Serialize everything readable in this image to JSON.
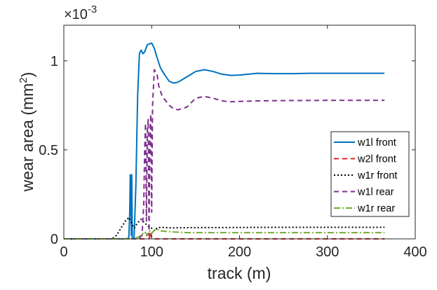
{
  "chart_data": {
    "type": "line",
    "xlabel": "track (m)",
    "ylabel": "wear area (mm",
    "ylabel_sup": "2",
    "ylabel_close": ")",
    "exponent_base": "×10",
    "exponent_power": "-3",
    "xlim": [
      0,
      400
    ],
    "ylim": [
      0,
      1.2
    ],
    "x_ticks": [
      0,
      100,
      200,
      300,
      400
    ],
    "x_tick_labels": [
      "0",
      "100",
      "200",
      "300",
      "400"
    ],
    "y_ticks": [
      0,
      0.5,
      1
    ],
    "y_tick_labels": [
      "0",
      "0.5",
      "1"
    ],
    "grid": false,
    "legend_position": "right",
    "series": [
      {
        "name": "w1l front",
        "color": "#0072BD",
        "dash": "solid",
        "points": [
          [
            0,
            0
          ],
          [
            70,
            0
          ],
          [
            73,
            0.002
          ],
          [
            74,
            0.01
          ],
          [
            75,
            0.15
          ],
          [
            75.6,
            0.36
          ],
          [
            76.2,
            0.35
          ],
          [
            76.8,
            0.02
          ],
          [
            77.3,
            0.36
          ],
          [
            78,
            0.0
          ],
          [
            80,
            0.005
          ],
          [
            82,
            0.3
          ],
          [
            84,
            0.8
          ],
          [
            86,
            1.04
          ],
          [
            88,
            1.06
          ],
          [
            90,
            1.04
          ],
          [
            92,
            1.05
          ],
          [
            95,
            1.09
          ],
          [
            100,
            1.1
          ],
          [
            103,
            1.07
          ],
          [
            106,
            1.02
          ],
          [
            110,
            0.96
          ],
          [
            115,
            0.92
          ],
          [
            120,
            0.885
          ],
          [
            125,
            0.875
          ],
          [
            130,
            0.88
          ],
          [
            140,
            0.91
          ],
          [
            150,
            0.94
          ],
          [
            160,
            0.95
          ],
          [
            170,
            0.94
          ],
          [
            180,
            0.925
          ],
          [
            190,
            0.918
          ],
          [
            200,
            0.92
          ],
          [
            210,
            0.925
          ],
          [
            220,
            0.93
          ],
          [
            240,
            0.928
          ],
          [
            260,
            0.928
          ],
          [
            280,
            0.93
          ],
          [
            300,
            0.93
          ],
          [
            330,
            0.93
          ],
          [
            365,
            0.93
          ]
        ]
      },
      {
        "name": "w2l front",
        "color": "#E02020",
        "dash": "7 5",
        "points": [
          [
            0,
            0
          ],
          [
            92,
            0
          ],
          [
            94,
            0.015
          ],
          [
            96,
            0.03
          ],
          [
            97,
            0.0
          ],
          [
            99,
            0.04
          ],
          [
            100,
            0.005
          ],
          [
            103,
            0.0
          ],
          [
            130,
            0
          ],
          [
            365,
            0
          ]
        ]
      },
      {
        "name": "w1r front",
        "color": "#000000",
        "dash": "2 3",
        "points": [
          [
            0,
            0
          ],
          [
            55,
            0
          ],
          [
            60,
            0.02
          ],
          [
            65,
            0.06
          ],
          [
            70,
            0.1
          ],
          [
            74,
            0.12
          ],
          [
            78,
            0.08
          ],
          [
            80,
            0.06
          ],
          [
            84,
            0.09
          ],
          [
            88,
            0.11
          ],
          [
            92,
            0.09
          ],
          [
            96,
            0.07
          ],
          [
            100,
            0.06
          ],
          [
            104,
            0.045
          ],
          [
            106,
            0.06
          ],
          [
            110,
            0.065
          ],
          [
            120,
            0.062
          ],
          [
            150,
            0.063
          ],
          [
            200,
            0.064
          ],
          [
            260,
            0.065
          ],
          [
            300,
            0.065
          ],
          [
            365,
            0.065
          ]
        ]
      },
      {
        "name": "w1l rear",
        "color": "#7E2F8E",
        "dash": "7 5",
        "points": [
          [
            0,
            0
          ],
          [
            85,
            0
          ],
          [
            89,
            0.02
          ],
          [
            91,
            0.2
          ],
          [
            92,
            0.5
          ],
          [
            93,
            0.65
          ],
          [
            94,
            0.1
          ],
          [
            95,
            0.6
          ],
          [
            96,
            0.67
          ],
          [
            97,
            0.02
          ],
          [
            98,
            0.6
          ],
          [
            99,
            0.7
          ],
          [
            100,
            0.15
          ],
          [
            101,
            0.75
          ],
          [
            103,
            0.95
          ],
          [
            106,
            0.93
          ],
          [
            108,
            0.86
          ],
          [
            112,
            0.8
          ],
          [
            120,
            0.75
          ],
          [
            125,
            0.73
          ],
          [
            130,
            0.725
          ],
          [
            140,
            0.74
          ],
          [
            150,
            0.79
          ],
          [
            160,
            0.8
          ],
          [
            170,
            0.79
          ],
          [
            180,
            0.775
          ],
          [
            190,
            0.77
          ],
          [
            200,
            0.772
          ],
          [
            220,
            0.775
          ],
          [
            260,
            0.777
          ],
          [
            300,
            0.778
          ],
          [
            365,
            0.778
          ]
        ]
      },
      {
        "name": "w1r rear",
        "color": "#77AC30",
        "dash": "9 3 2 3",
        "points": [
          [
            0,
            0
          ],
          [
            80,
            0
          ],
          [
            84,
            0.008
          ],
          [
            88,
            0.02
          ],
          [
            92,
            0.04
          ],
          [
            95,
            0.02
          ],
          [
            98,
            0.045
          ],
          [
            100,
            0.03
          ],
          [
            103,
            0.05
          ],
          [
            106,
            0.055
          ],
          [
            110,
            0.045
          ],
          [
            120,
            0.04
          ],
          [
            140,
            0.035
          ],
          [
            180,
            0.035
          ],
          [
            250,
            0.035
          ],
          [
            300,
            0.035
          ],
          [
            365,
            0.035
          ]
        ]
      }
    ]
  }
}
